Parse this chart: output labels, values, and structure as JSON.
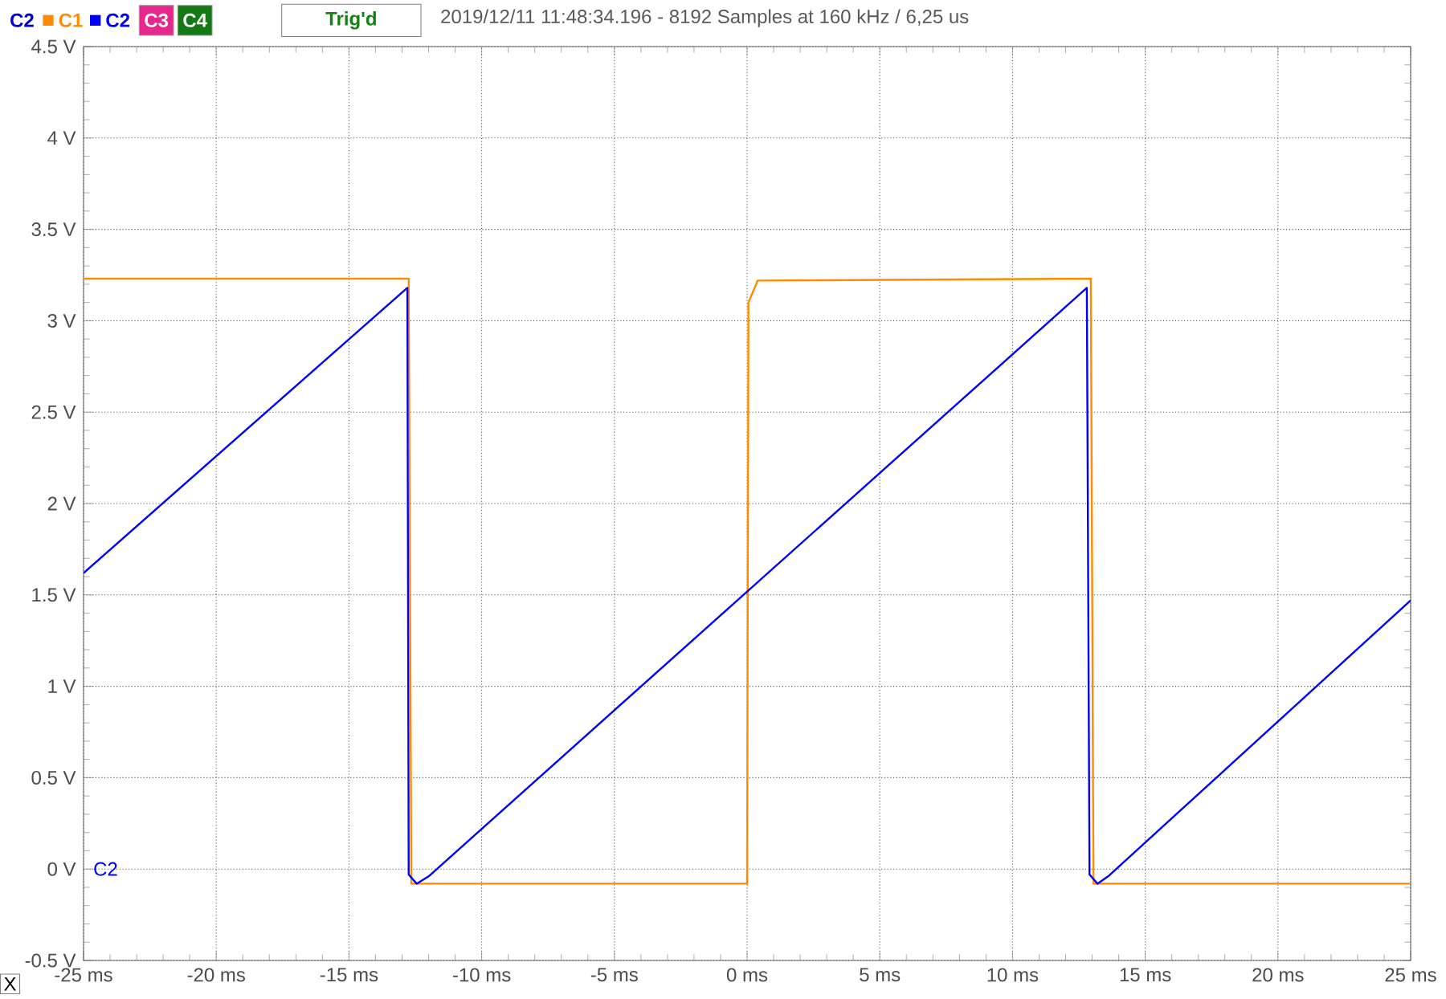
{
  "chart_data": {
    "type": "line",
    "title": "2019/12/11 11:48:34.196 - 8192 Samples at 160 kHz / 6,25 us",
    "xlabel": "X",
    "ylabel": "C2",
    "annotations": [
      "C3",
      "C4",
      "Trig'd",
      "C2"
    ],
    "series": [
      {
        "name": "C1",
        "color": "#ff8c00",
        "x": [
          -25,
          -12.75,
          -12.65,
          0,
          0.05,
          0.4,
          12.95,
          13.05,
          25
        ],
        "values": [
          3.23,
          3.23,
          -0.08,
          -0.08,
          3.1,
          3.22,
          3.23,
          -0.08,
          -0.08
        ]
      },
      {
        "name": "C2",
        "color": "#0000ff",
        "x": [
          -25,
          -12.8,
          -12.75,
          -12.45,
          -12.0,
          12.8,
          12.9,
          13.2,
          13.6,
          25
        ],
        "values": [
          1.62,
          3.18,
          -0.03,
          -0.08,
          -0.04,
          3.18,
          -0.03,
          -0.08,
          -0.04,
          1.47
        ]
      }
    ],
    "xlim": [
      -25,
      25
    ],
    "ylim": [
      -0.5,
      4.5
    ],
    "xticks": [
      {
        "value": -25,
        "label": "-25 ms"
      },
      {
        "value": -20,
        "label": "-20 ms"
      },
      {
        "value": -15,
        "label": "-15 ms"
      },
      {
        "value": -10,
        "label": "-10 ms"
      },
      {
        "value": -5,
        "label": "-5 ms"
      },
      {
        "value": 0,
        "label": "0 ms"
      },
      {
        "value": 5,
        "label": "5 ms"
      },
      {
        "value": 10,
        "label": "10 ms"
      },
      {
        "value": 15,
        "label": "15 ms"
      },
      {
        "value": 20,
        "label": "20 ms"
      },
      {
        "value": 25,
        "label": "25 ms"
      }
    ],
    "yticks": [
      {
        "value": -0.5,
        "label": "-0.5 V"
      },
      {
        "value": 0,
        "label": "0 V"
      },
      {
        "value": 0.5,
        "label": "0.5 V"
      },
      {
        "value": 1,
        "label": "1 V"
      },
      {
        "value": 1.5,
        "label": "1.5 V"
      },
      {
        "value": 2,
        "label": "2 V"
      },
      {
        "value": 2.5,
        "label": "2.5 V"
      },
      {
        "value": 3,
        "label": "3 V"
      },
      {
        "value": 3.5,
        "label": "3.5 V"
      },
      {
        "value": 4,
        "label": "4 V"
      },
      {
        "value": 4.5,
        "label": "4.5 V"
      }
    ],
    "grid": true,
    "legend": "top left",
    "marker": "none",
    "line_style": "solid"
  }
}
